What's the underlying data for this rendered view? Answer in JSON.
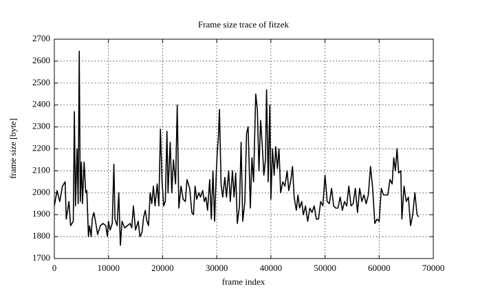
{
  "chart_data": {
    "type": "line",
    "title": "Frame size trace of fitzek",
    "xlabel": "frame index",
    "ylabel": "frame size [byte]",
    "color": "#000000",
    "grid": true,
    "xlim": [
      0,
      70000
    ],
    "xticks": [
      0,
      10000,
      20000,
      30000,
      40000,
      50000,
      60000,
      70000
    ],
    "ylim": [
      1700,
      2700
    ],
    "yticks": [
      1700,
      1800,
      1900,
      2000,
      2100,
      2200,
      2300,
      2400,
      2500,
      2600,
      2700
    ],
    "x": [
      0,
      500,
      1000,
      1500,
      2000,
      2200,
      2700,
      3000,
      3500,
      3700,
      3900,
      4200,
      4400,
      4600,
      4800,
      5000,
      5200,
      5500,
      5800,
      6000,
      6300,
      6500,
      6800,
      7000,
      7300,
      7600,
      8000,
      8500,
      9000,
      9500,
      9800,
      10000,
      10300,
      10700,
      11000,
      11200,
      11600,
      11900,
      12200,
      12500,
      13000,
      13500,
      14000,
      14300,
      14600,
      15000,
      15500,
      15800,
      16200,
      16500,
      16800,
      17100,
      17400,
      17700,
      18000,
      18300,
      18600,
      19000,
      19300,
      19600,
      19900,
      20200,
      20500,
      20800,
      21000,
      21400,
      21700,
      22000,
      22400,
      22700,
      23000,
      23400,
      23800,
      24200,
      24500,
      25000,
      25400,
      25700,
      26000,
      26300,
      26700,
      27000,
      27400,
      27700,
      28000,
      28300,
      28700,
      29000,
      29300,
      29600,
      29900,
      30100,
      30300,
      30500,
      30800,
      31100,
      31500,
      31800,
      32200,
      32500,
      32900,
      33200,
      33500,
      33800,
      34200,
      34500,
      34800,
      35200,
      35500,
      35800,
      36200,
      36500,
      36800,
      37200,
      37500,
      37800,
      38100,
      38400,
      38700,
      39000,
      39200,
      39500,
      39800,
      40000,
      40300,
      40600,
      40900,
      41200,
      41500,
      41800,
      42200,
      42600,
      43000,
      43300,
      43700,
      44000,
      44300,
      44700,
      45000,
      45300,
      45700,
      46000,
      46400,
      46800,
      47200,
      47600,
      48000,
      48400,
      48800,
      49200,
      49600,
      50000,
      50400,
      50800,
      51200,
      51600,
      52000,
      52400,
      52800,
      53200,
      53600,
      54000,
      54400,
      54800,
      55200,
      55600,
      56000,
      56400,
      56800,
      57200,
      57600,
      58000,
      58400,
      58800,
      59200,
      59600,
      60000,
      60400,
      60800,
      61200,
      61600,
      62000,
      62400,
      62700,
      63000,
      63300,
      63600,
      64000,
      64200,
      64600,
      65000,
      65400,
      65800,
      66200,
      66600,
      67000,
      67300
    ],
    "values": [
      1940,
      2010,
      1960,
      2030,
      2050,
      1880,
      1960,
      1850,
      1870,
      2370,
      1940,
      2200,
      1950,
      2645,
      1960,
      2140,
      1950,
      2140,
      2000,
      2010,
      1800,
      1850,
      1800,
      1880,
      1910,
      1870,
      1810,
      1850,
      1860,
      1850,
      1800,
      1870,
      1830,
      1860,
      2130,
      1880,
      1850,
      2000,
      1760,
      1870,
      1840,
      1850,
      1860,
      1840,
      1940,
      1830,
      1870,
      1800,
      1820,
      1890,
      1920,
      1870,
      1850,
      2000,
      1950,
      2030,
      1940,
      2040,
      1940,
      2290,
      2050,
      1940,
      1960,
      2280,
      2000,
      2230,
      2000,
      2150,
      2040,
      2400,
      1930,
      2030,
      1970,
      1960,
      2060,
      2020,
      1910,
      1900,
      2030,
      1970,
      2000,
      1980,
      2010,
      1960,
      1980,
      1920,
      2060,
      1880,
      2100,
      1870,
      2080,
      2190,
      2250,
      2380,
      2040,
      1980,
      2070,
      1980,
      2100,
      1960,
      2100,
      1980,
      2090,
      1860,
      1940,
      2230,
      1870,
      1960,
      2270,
      2300,
      1930,
      2160,
      2050,
      2450,
      2380,
      2100,
      2330,
      2220,
      2080,
      2150,
      2470,
      2050,
      2400,
      1970,
      2200,
      2080,
      2210,
      2110,
      2200,
      2000,
      2050,
      2030,
      2100,
      2010,
      2060,
      2120,
      1980,
      1920,
      1990,
      1930,
      1960,
      1900,
      1940,
      1870,
      1930,
      1910,
      1940,
      1880,
      1880,
      1960,
      1940,
      2080,
      1960,
      1950,
      2020,
      1940,
      1930,
      1930,
      1980,
      1920,
      1960,
      1940,
      2030,
      1940,
      1950,
      2020,
      1910,
      2020,
      1960,
      1990,
      1950,
      1990,
      2120,
      2020,
      1860,
      1880,
      1870,
      2020,
      1990,
      1990,
      1990,
      2060,
      2040,
      2160,
      2100,
      2200,
      2090,
      2100,
      1880,
      2030,
      1960,
      1980,
      1850,
      1900,
      2000,
      1900,
      1890
    ]
  }
}
